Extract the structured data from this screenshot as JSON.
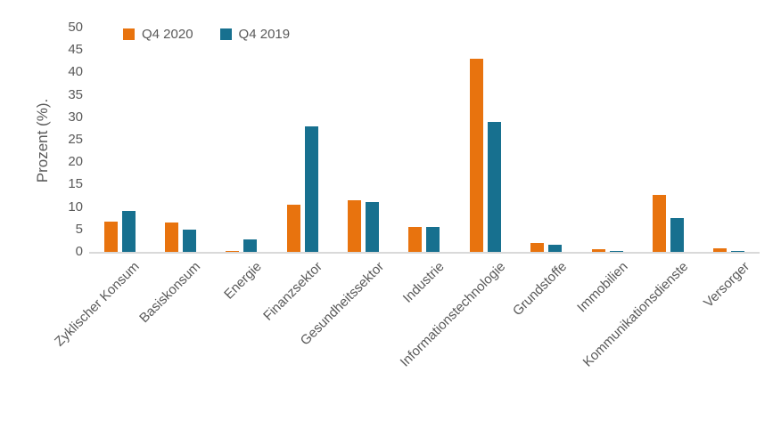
{
  "chart_data": {
    "type": "bar",
    "title": "",
    "ylabel": "Prozent (%).",
    "xlabel": "",
    "ylim": [
      0,
      50
    ],
    "ytick_step": 5,
    "grid": false,
    "legend_position": "top-left",
    "categories": [
      "Zyklischer Konsum",
      "Basiskonsum",
      "Energie",
      "Finanzsektor",
      "Gesundheitssektor",
      "Industrie",
      "Informationstechnologie",
      "Grundstoffe",
      "Immobilien",
      "Kommunikationsdienste",
      "Versorger"
    ],
    "series": [
      {
        "name": "Q4 2020",
        "color": "#E8730E",
        "values": [
          6.7,
          6.6,
          0.3,
          10.5,
          11.5,
          5.5,
          43.0,
          2.0,
          0.5,
          12.7,
          0.7
        ]
      },
      {
        "name": "Q4 2019",
        "color": "#17708F",
        "values": [
          9.2,
          5.0,
          2.7,
          27.9,
          11.1,
          5.5,
          29.0,
          1.6,
          0.3,
          7.5,
          0.3
        ]
      }
    ],
    "axis_text_color": "#595959",
    "axis_line_color": "#D9D9D9"
  }
}
